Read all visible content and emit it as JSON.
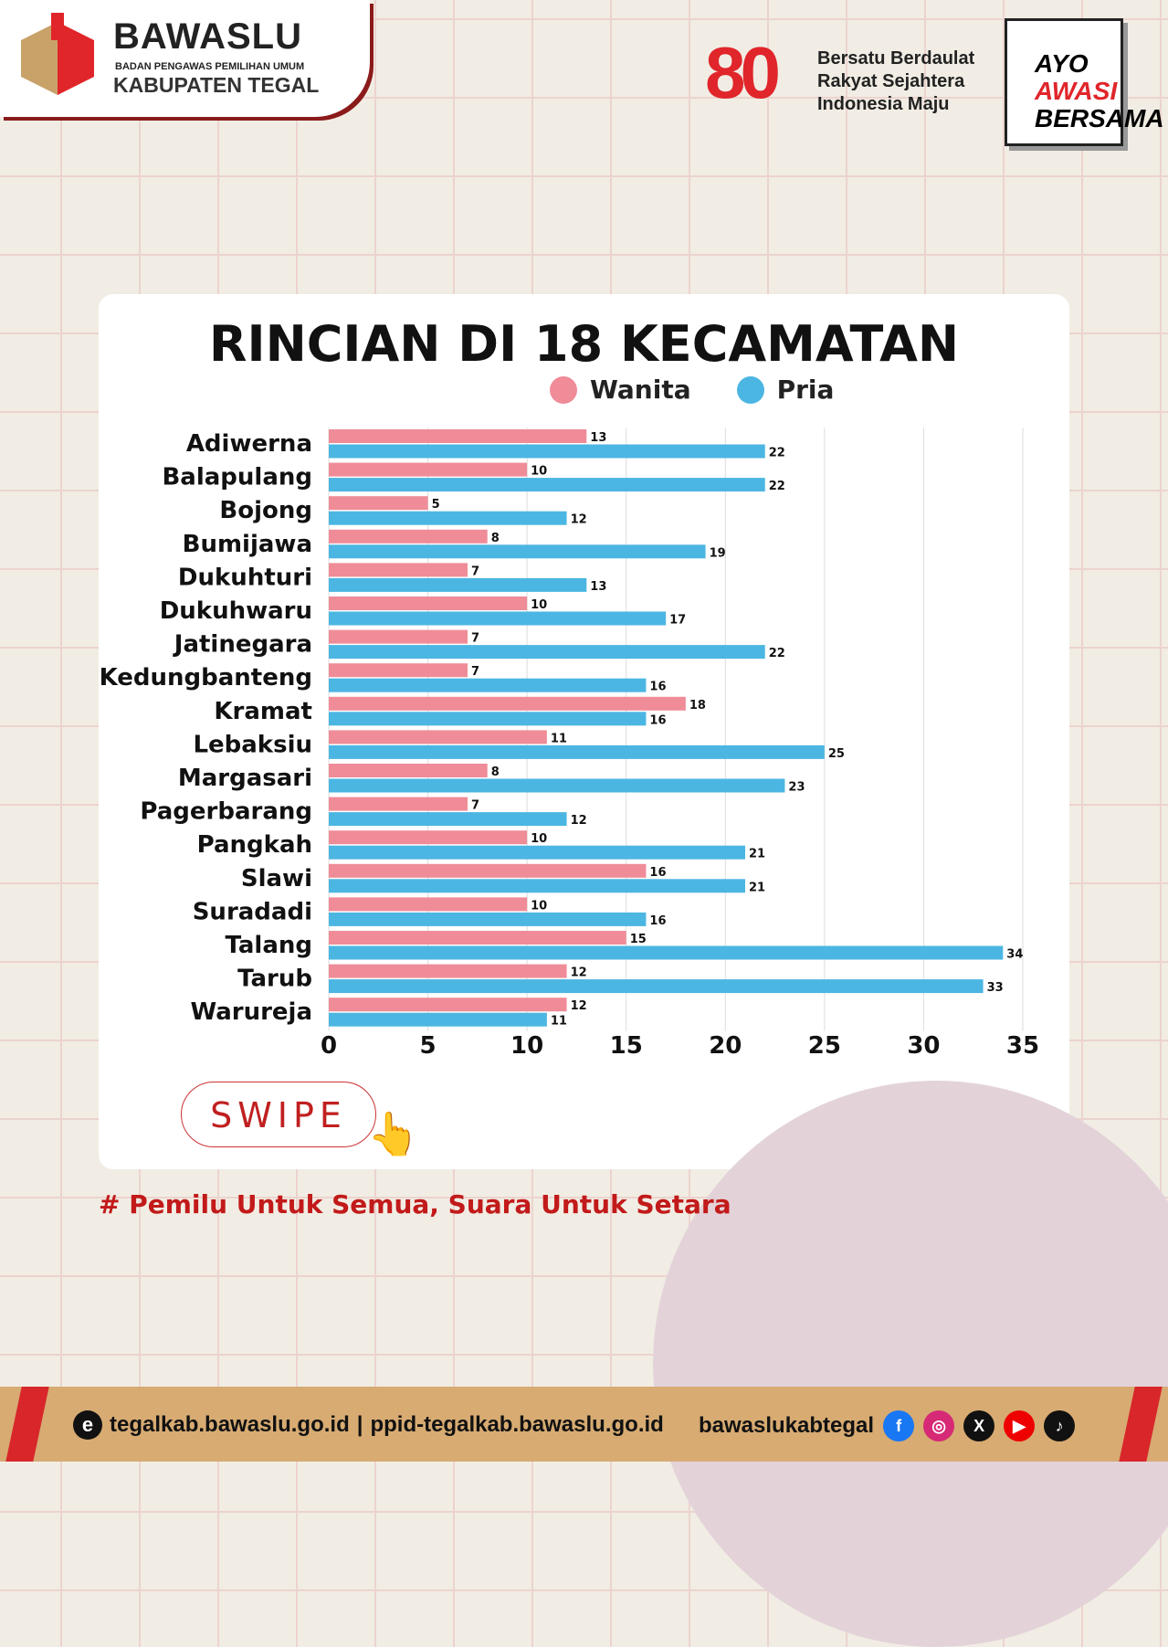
{
  "header": {
    "org": "BAWASLU",
    "org_sub": "BADAN PENGAWAS PEMILIHAN UMUM",
    "org_region": "KABUPATEN TEGAL",
    "anniv": "80",
    "tagline": [
      "Bersatu Berdaulat",
      "Rakyat Sejahtera",
      "Indonesia Maju"
    ],
    "campaign": [
      "AYO",
      "AWASI",
      "BERSAMA"
    ]
  },
  "swipe_label": "SWIPE",
  "hashtag": "# Pemilu Untuk Semua, Suara Untuk Setara",
  "footer": {
    "website": "tegalkab.bawaslu.go.id",
    "ppid": "ppid-tegalkab.bawaslu.go.id",
    "handle": "bawaslukabtegal",
    "icons": [
      "facebook-icon",
      "instagram-icon",
      "x-icon",
      "youtube-icon",
      "tiktok-icon"
    ]
  },
  "colors": {
    "wanita": "#ef8c98",
    "pria": "#4cb6e2",
    "accent": "#c21a1a"
  },
  "chart_data": {
    "type": "bar",
    "orientation": "horizontal",
    "title": "RINCIAN DI 18 KECAMATAN",
    "categories": [
      "Adiwerna",
      "Balapulang",
      "Bojong",
      "Bumijawa",
      "Dukuhturi",
      "Dukuhwaru",
      "Jatinegara",
      "Kedungbanteng",
      "Kramat",
      "Lebaksiu",
      "Margasari",
      "Pagerbarang",
      "Pangkah",
      "Slawi",
      "Suradadi",
      "Talang",
      "Tarub",
      "Warureja"
    ],
    "series": [
      {
        "name": "Wanita",
        "values": [
          13,
          10,
          5,
          8,
          7,
          10,
          7,
          7,
          18,
          11,
          8,
          7,
          10,
          16,
          10,
          15,
          12,
          12
        ]
      },
      {
        "name": "Pria",
        "values": [
          22,
          22,
          12,
          19,
          13,
          17,
          22,
          16,
          16,
          25,
          23,
          12,
          21,
          21,
          16,
          34,
          33,
          11
        ]
      }
    ],
    "xlim": [
      0,
      35
    ],
    "xticks": [
      0,
      5,
      10,
      15,
      20,
      25,
      30,
      35
    ],
    "grid": true,
    "legend": "top-right",
    "data_labels": true
  }
}
